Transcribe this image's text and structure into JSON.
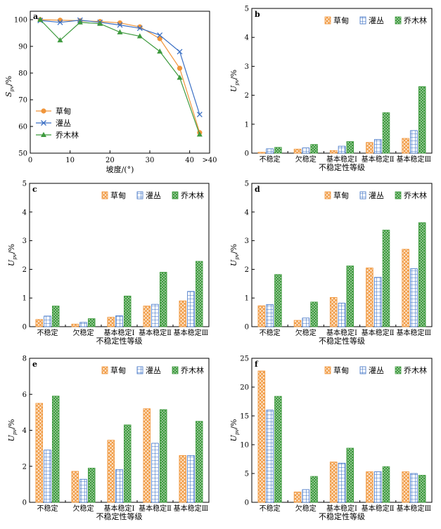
{
  "colors": {
    "caodian": "#f0953a",
    "guancong": "#3a6fc4",
    "qiaomulin": "#3e9a3e",
    "axis": "#000000"
  },
  "chart_data": [
    {
      "panel": "a",
      "type": "line",
      "x_ticks": [
        "0",
        "10",
        "20",
        "30",
        "40",
        ">40"
      ],
      "xlabel": "坡度/(°)",
      "ylabel": "S_pv/%",
      "ylabel_main": "S",
      "ylabel_sub": "pv",
      "ylabel_unit": "/%",
      "ylim": [
        50,
        100
      ],
      "y_ticks": [
        50,
        60,
        70,
        80,
        90,
        100
      ],
      "xlim": [
        0,
        45
      ],
      "legend_position": "bottom-left",
      "series": [
        {
          "name": "草甸",
          "marker": "circle",
          "color_key": "caodian",
          "x": [
            2.5,
            7.5,
            12.5,
            17.5,
            22.5,
            27.5,
            32.5,
            37.5,
            42.5
          ],
          "y": [
            100,
            99.8,
            99.6,
            99.3,
            98.8,
            97.3,
            92.9,
            81.8,
            57.7
          ]
        },
        {
          "name": "灌丛",
          "marker": "x",
          "color_key": "guancong",
          "x": [
            2.5,
            7.5,
            12.5,
            17.5,
            22.5,
            27.5,
            32.5,
            37.5,
            42.5
          ],
          "y": [
            99.7,
            99.0,
            99.8,
            99.0,
            98.0,
            96.8,
            94.2,
            88.0,
            64.5
          ]
        },
        {
          "name": "乔木林",
          "marker": "triangle",
          "color_key": "qiaomulin",
          "x": [
            2.5,
            7.5,
            12.5,
            17.5,
            22.5,
            27.5,
            32.5,
            37.5,
            42.5
          ],
          "y": [
            100,
            92.3,
            99.0,
            98.5,
            95.3,
            93.8,
            88.1,
            78.3,
            57.0
          ]
        }
      ]
    },
    {
      "panel": "b",
      "type": "bar",
      "categories": [
        "不稳定",
        "欠稳定",
        "基本稳定Ⅰ",
        "基本稳定Ⅱ",
        "基本稳定Ⅲ"
      ],
      "xlabel": "不稳定性等级",
      "ylabel": "U_pv/%",
      "ylabel_main": "U",
      "ylabel_sub": "pv",
      "ylabel_unit": "/%",
      "ylim": [
        0,
        5
      ],
      "y_ticks": [
        0,
        1,
        2,
        3,
        4,
        5
      ],
      "legend_position": "top-right",
      "series": [
        {
          "name": "草甸",
          "pattern": "crosshatch",
          "values": [
            0.03,
            0.14,
            0.09,
            0.37,
            0.51
          ]
        },
        {
          "name": "灌丛",
          "pattern": "grid",
          "values": [
            0.15,
            0.18,
            0.24,
            0.47,
            0.78
          ]
        },
        {
          "name": "乔木林",
          "pattern": "dots",
          "values": [
            0.2,
            0.3,
            0.4,
            1.4,
            2.3
          ]
        }
      ]
    },
    {
      "panel": "c",
      "type": "bar",
      "categories": [
        "不稳定",
        "欠稳定",
        "基本稳定Ⅰ",
        "基本稳定Ⅱ",
        "基本稳定Ⅲ"
      ],
      "xlabel": "不稳定性等级",
      "ylabel": "U_pv/%",
      "ylabel_main": "U",
      "ylabel_sub": "pv",
      "ylabel_unit": "/%",
      "ylim": [
        0,
        5
      ],
      "y_ticks": [
        0,
        1,
        2,
        3,
        4,
        5
      ],
      "legend_position": "top-right",
      "series": [
        {
          "name": "草甸",
          "pattern": "crosshatch",
          "values": [
            0.25,
            0.09,
            0.33,
            0.72,
            0.9
          ]
        },
        {
          "name": "灌丛",
          "pattern": "grid",
          "values": [
            0.37,
            0.15,
            0.38,
            0.78,
            1.23
          ]
        },
        {
          "name": "乔木林",
          "pattern": "dots",
          "values": [
            0.72,
            0.28,
            1.07,
            1.9,
            2.28
          ]
        }
      ]
    },
    {
      "panel": "d",
      "type": "bar",
      "categories": [
        "不稳定",
        "欠稳定",
        "基本稳定Ⅰ",
        "基本稳定Ⅱ",
        "基本稳定Ⅲ"
      ],
      "xlabel": "不稳定性等级",
      "ylabel": "U_pv/%",
      "ylabel_main": "U",
      "ylabel_sub": "pv",
      "ylabel_unit": "/%",
      "ylim": [
        0,
        5
      ],
      "y_ticks": [
        0,
        1,
        2,
        3,
        4,
        5
      ],
      "legend_position": "top-right",
      "series": [
        {
          "name": "草甸",
          "pattern": "crosshatch",
          "values": [
            0.73,
            0.22,
            1.02,
            2.05,
            2.7
          ]
        },
        {
          "name": "灌丛",
          "pattern": "grid",
          "values": [
            0.77,
            0.3,
            0.82,
            1.72,
            2.02
          ]
        },
        {
          "name": "乔木林",
          "pattern": "dots",
          "values": [
            1.82,
            0.86,
            2.12,
            3.37,
            3.63
          ]
        }
      ]
    },
    {
      "panel": "e",
      "type": "bar",
      "categories": [
        "不稳定",
        "欠稳定",
        "基本稳定Ⅰ",
        "基本稳定Ⅱ",
        "基本稳定Ⅲ"
      ],
      "xlabel": "不稳定性等级",
      "ylabel": "U_pv/%",
      "ylabel_main": "U",
      "ylabel_sub": "pv",
      "ylabel_unit": "/%",
      "ylim": [
        0,
        8
      ],
      "y_ticks": [
        0,
        2,
        4,
        6,
        8
      ],
      "legend_position": "top-right",
      "series": [
        {
          "name": "草甸",
          "pattern": "crosshatch",
          "values": [
            5.5,
            1.72,
            3.45,
            5.2,
            2.6
          ]
        },
        {
          "name": "灌丛",
          "pattern": "grid",
          "values": [
            2.9,
            1.28,
            1.82,
            3.28,
            2.6
          ]
        },
        {
          "name": "乔木林",
          "pattern": "dots",
          "values": [
            5.9,
            1.9,
            4.3,
            5.15,
            4.5
          ]
        }
      ]
    },
    {
      "panel": "f",
      "type": "bar",
      "categories": [
        "不稳定",
        "欠稳定",
        "基本稳定Ⅰ",
        "基本稳定Ⅱ",
        "基本稳定Ⅲ"
      ],
      "xlabel": "不稳定性等级",
      "ylabel": "U_pv/%",
      "ylabel_main": "U",
      "ylabel_sub": "pv",
      "ylabel_unit": "/%",
      "ylim": [
        0,
        25
      ],
      "y_ticks": [
        0,
        5,
        10,
        15,
        20,
        25
      ],
      "legend_position": "top-right",
      "series": [
        {
          "name": "草甸",
          "pattern": "crosshatch",
          "values": [
            22.8,
            1.8,
            7.0,
            5.3,
            5.3
          ]
        },
        {
          "name": "灌丛",
          "pattern": "grid",
          "values": [
            16.0,
            2.2,
            6.8,
            5.3,
            5.0
          ]
        },
        {
          "name": "乔木林",
          "pattern": "dots",
          "values": [
            18.4,
            4.5,
            9.4,
            6.2,
            4.7
          ]
        }
      ]
    }
  ]
}
